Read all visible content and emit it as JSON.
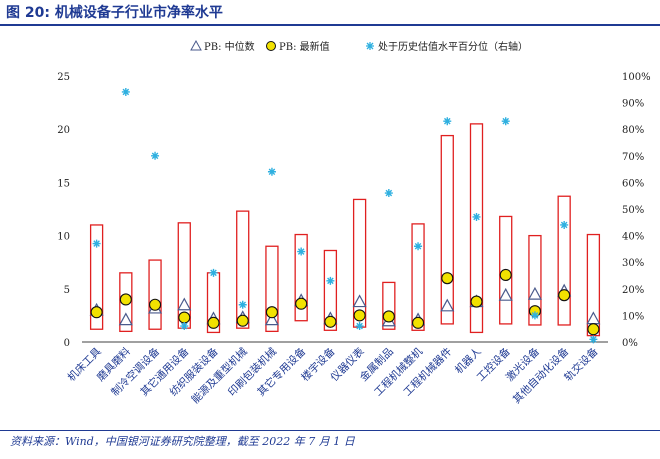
{
  "figure": {
    "title": "图 20: 机械设备子行业市净率水平",
    "source": "资料来源：Wind，中国银河证券研究院整理，截至 2022 年 7 月 1 日"
  },
  "colors": {
    "header": "#1f3a93",
    "box": "#e02020",
    "median_marker": "#4a5a8c",
    "latest_marker": "#f2e200",
    "percentile_marker": "#2fb0e0"
  },
  "chart_data": {
    "type": "scatter",
    "categories": [
      "机床工具",
      "磨具磨料",
      "制冷空调设备",
      "其它通用设备",
      "纺织服装设备",
      "能源及重型机械",
      "印刷包装机械",
      "其它专用设备",
      "楼宇设备",
      "仪器仪表",
      "金属制品",
      "工程机械整机",
      "工程机械器件",
      "机器人",
      "工控设备",
      "激光设备",
      "其他自动化设备",
      "轨交设备"
    ],
    "range_boxes": [
      {
        "min": 1.2,
        "max": 11.0
      },
      {
        "min": 1.0,
        "max": 6.5
      },
      {
        "min": 1.2,
        "max": 7.7
      },
      {
        "min": 1.3,
        "max": 11.2
      },
      {
        "min": 0.9,
        "max": 6.5
      },
      {
        "min": 1.3,
        "max": 12.3
      },
      {
        "min": 1.0,
        "max": 9.0
      },
      {
        "min": 2.0,
        "max": 10.1
      },
      {
        "min": 1.1,
        "max": 8.6
      },
      {
        "min": 1.4,
        "max": 13.4
      },
      {
        "min": 1.2,
        "max": 5.6
      },
      {
        "min": 1.1,
        "max": 11.1
      },
      {
        "min": 1.7,
        "max": 19.4
      },
      {
        "min": 0.9,
        "max": 20.5
      },
      {
        "min": 1.7,
        "max": 11.8
      },
      {
        "min": 1.6,
        "max": 10.0
      },
      {
        "min": 1.6,
        "max": 13.7
      },
      {
        "min": 0.6,
        "max": 10.1
      }
    ],
    "series": [
      {
        "name": "PB: 中位数",
        "axis": "left",
        "values": [
          3.0,
          2.1,
          3.2,
          3.5,
          2.2,
          2.3,
          2.1,
          3.9,
          2.2,
          3.8,
          2.0,
          2.1,
          3.4,
          3.8,
          4.4,
          4.5,
          4.8,
          2.2
        ]
      },
      {
        "name": "PB: 最新值",
        "axis": "left",
        "values": [
          2.8,
          4.0,
          3.5,
          2.3,
          1.8,
          2.0,
          2.8,
          3.6,
          1.9,
          2.5,
          2.4,
          1.8,
          6.0,
          3.8,
          6.3,
          2.9,
          4.4,
          1.2
        ]
      },
      {
        "name": "处于历史估值水平百分位（右轴）",
        "axis": "right",
        "values": [
          37,
          94,
          70,
          6,
          26,
          14,
          64,
          34,
          23,
          6,
          56,
          36,
          83,
          47,
          83,
          10,
          44,
          1
        ]
      }
    ],
    "y_left": {
      "min": 0,
      "max": 25,
      "ticks": [
        "0",
        "5",
        "10",
        "15",
        "20",
        "25"
      ]
    },
    "y_right": {
      "min": 0,
      "max": 100,
      "ticks": [
        "0%",
        "10%",
        "20%",
        "30%",
        "40%",
        "50%",
        "60%",
        "70%",
        "80%",
        "90%",
        "100%"
      ]
    },
    "legend": {
      "position": "top"
    },
    "grid": false
  }
}
